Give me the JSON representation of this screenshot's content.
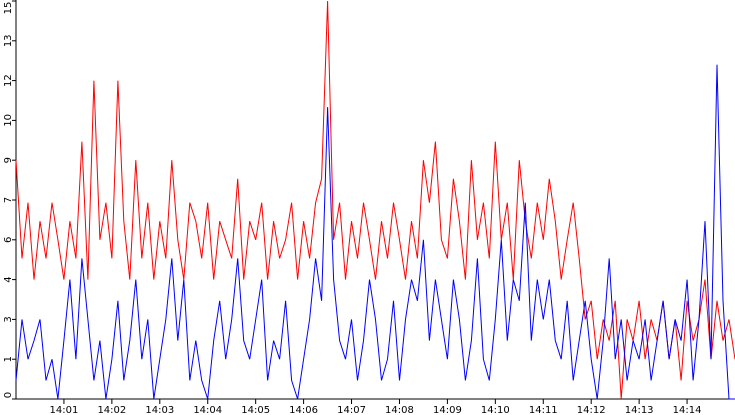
{
  "chart_data": {
    "type": "line",
    "x": [
      0,
      0.125,
      0.25,
      0.375,
      0.5,
      0.625,
      0.75,
      0.875,
      1,
      1.125,
      1.25,
      1.375,
      1.5,
      1.625,
      1.75,
      1.875,
      2,
      2.125,
      2.25,
      2.375,
      2.5,
      2.625,
      2.75,
      2.875,
      3,
      3.125,
      3.25,
      3.375,
      3.5,
      3.625,
      3.75,
      3.875,
      4,
      4.125,
      4.25,
      4.375,
      4.5,
      4.625,
      4.75,
      4.875,
      5,
      5.125,
      5.25,
      5.375,
      5.5,
      5.625,
      5.75,
      5.875,
      6,
      6.125,
      6.25,
      6.375,
      6.5,
      6.625,
      6.75,
      6.875,
      7,
      7.125,
      7.25,
      7.375,
      7.5,
      7.625,
      7.75,
      7.875,
      8,
      8.125,
      8.25,
      8.375,
      8.5,
      8.625,
      8.75,
      8.875,
      9,
      9.125,
      9.25,
      9.375,
      9.5,
      9.625,
      9.75,
      9.875,
      10,
      10.125,
      10.25,
      10.375,
      10.5,
      10.625,
      10.75,
      10.875,
      11,
      11.125,
      11.25,
      11.375,
      11.5,
      11.625,
      11.75,
      11.875,
      12,
      12.125,
      12.25,
      12.375,
      12.5,
      12.625,
      12.75,
      12.875,
      13,
      13.125,
      13.25,
      13.375,
      13.5,
      13.625,
      13.75,
      13.875,
      14,
      14.125,
      14.25,
      14.375,
      14.5,
      14.625,
      14.75,
      14.875,
      15
    ],
    "series": [
      {
        "color": "#ff0000",
        "values": [
          9,
          5.3,
          7.4,
          4.5,
          6.7,
          5.3,
          7.4,
          6,
          4.5,
          6.7,
          5.3,
          9.7,
          4.5,
          12,
          6,
          7.4,
          5.3,
          12,
          6.7,
          4.5,
          9,
          5.3,
          7.4,
          4.5,
          6.7,
          5.3,
          9,
          6,
          4.5,
          7.4,
          6.7,
          5.3,
          7.4,
          4.5,
          6.7,
          6,
          5.3,
          8.3,
          4.5,
          6.7,
          6,
          7.4,
          4.5,
          6.7,
          5.3,
          6,
          7.4,
          4.5,
          6.7,
          5.3,
          7.4,
          8.3,
          15,
          6,
          7.4,
          4.5,
          6.7,
          5.3,
          7.4,
          6,
          4.5,
          6.7,
          5.3,
          7.4,
          6,
          4.5,
          6.7,
          5.3,
          9,
          7.4,
          9.7,
          6,
          5.3,
          8.3,
          6.7,
          4.5,
          9,
          6,
          7.4,
          5.3,
          9.7,
          6,
          7.4,
          4.5,
          9,
          6.7,
          5.3,
          7.4,
          6,
          8.3,
          6.7,
          4.5,
          6,
          7.4,
          5.3,
          3,
          3.7,
          1.5,
          3,
          2.2,
          3.7,
          0,
          3,
          2.2,
          3.7,
          1.5,
          3,
          2.2,
          3.7,
          1.5,
          3,
          0.7,
          3.7,
          2.2,
          3,
          4.5,
          1.5,
          3.7,
          2.2,
          3,
          1.5
        ]
      },
      {
        "color": "#0000ff",
        "values": [
          0.7,
          3,
          1.5,
          2.2,
          3,
          0.7,
          1.5,
          0,
          2.2,
          4.5,
          1.5,
          5.3,
          3,
          0.7,
          2.2,
          0,
          1.5,
          3.7,
          0.7,
          2.2,
          4.5,
          1.5,
          3,
          0,
          1.5,
          3,
          5.3,
          2.2,
          4.5,
          0.7,
          2.2,
          0.7,
          0,
          2.2,
          3.7,
          1.5,
          3,
          5.3,
          2.2,
          1.5,
          3,
          4.5,
          0.7,
          2.2,
          1.5,
          3.7,
          0.7,
          0,
          1.5,
          3,
          5.3,
          3.7,
          11,
          4.5,
          2.2,
          1.5,
          3,
          0.7,
          2.2,
          4.5,
          3,
          0.7,
          1.5,
          3.7,
          0.7,
          3,
          4.5,
          3.7,
          6,
          2.2,
          4.5,
          3,
          1.5,
          4.5,
          3,
          0.7,
          2.2,
          5.3,
          1.5,
          0.7,
          3,
          6,
          2.2,
          4.5,
          3.7,
          7.4,
          2.2,
          4.5,
          3,
          4.5,
          2.2,
          1.5,
          3.7,
          0.7,
          2.2,
          3.7,
          1.5,
          0,
          2.2,
          5.3,
          1.5,
          3,
          0.7,
          2.2,
          1.5,
          3,
          0.7,
          2.2,
          3.7,
          1.5,
          3,
          2.2,
          4.5,
          0.7,
          3,
          6.7,
          1.5,
          12.6,
          3.7,
          0,
          0
        ]
      }
    ],
    "xlim": [
      0,
      15
    ],
    "xticks": [
      {
        "value": 1,
        "label": "14:01"
      },
      {
        "value": 2,
        "label": "14:02"
      },
      {
        "value": 3,
        "label": "14:03"
      },
      {
        "value": 4,
        "label": "14:04"
      },
      {
        "value": 5,
        "label": "14:05"
      },
      {
        "value": 6,
        "label": "14:06"
      },
      {
        "value": 7,
        "label": "14:07"
      },
      {
        "value": 8,
        "label": "14:08"
      },
      {
        "value": 9,
        "label": "14:09"
      },
      {
        "value": 10,
        "label": "14:10"
      },
      {
        "value": 11,
        "label": "14:11"
      },
      {
        "value": 12,
        "label": "14:12"
      },
      {
        "value": 13,
        "label": "14:13"
      },
      {
        "value": 14,
        "label": "14:14"
      }
    ],
    "ylim": [
      0,
      15
    ],
    "yticks": [
      0,
      {
        "value": 1.5,
        "label": "1"
      },
      3,
      {
        "value": 4.5,
        "label": "4"
      },
      6,
      {
        "value": 7.5,
        "label": "7"
      },
      9,
      {
        "value": 10.5,
        "label": "10"
      },
      12,
      {
        "value": 13.5,
        "label": "13"
      },
      15
    ]
  }
}
